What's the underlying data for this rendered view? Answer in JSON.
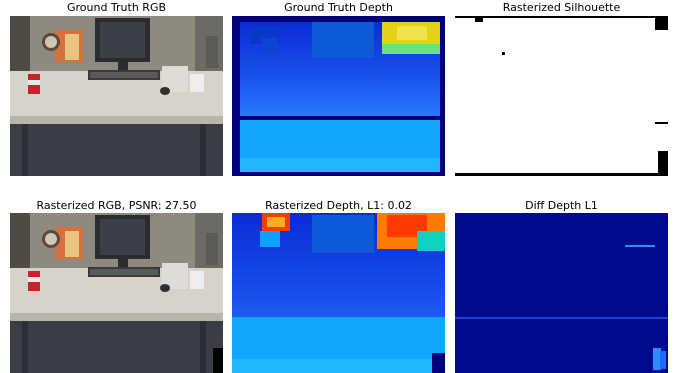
{
  "figure": {
    "panels": [
      {
        "title": "Ground Truth RGB",
        "kind": "rgb"
      },
      {
        "title": "Ground Truth Depth",
        "kind": "depth"
      },
      {
        "title": "Rasterized Silhouette",
        "kind": "silhouette"
      },
      {
        "title": "Rasterized RGB, PSNR: 27.50",
        "kind": "rgb"
      },
      {
        "title": "Rasterized Depth, L1: 0.02",
        "kind": "depth"
      },
      {
        "title": "Diff Depth L1",
        "kind": "diff"
      }
    ]
  },
  "colors": {
    "depth_far": "#1a3ee0",
    "depth_near": "#00a8ff",
    "depth_hot": "#ff3a00",
    "diff_bg": "#000a8c",
    "diff_bright": "#2e8bff",
    "desk_top": "#d8d4cc",
    "floor": "#3a3e44"
  }
}
